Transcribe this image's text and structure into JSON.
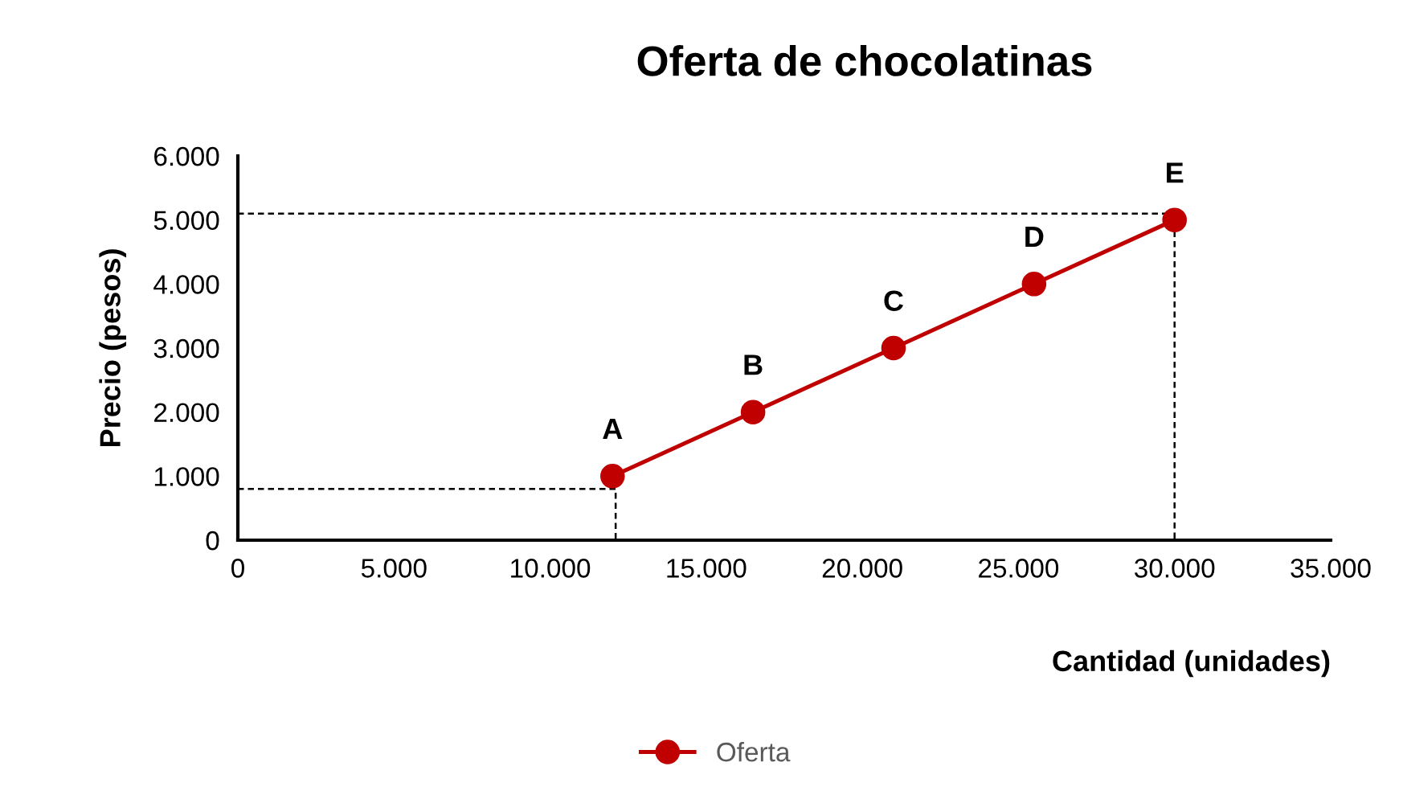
{
  "chart_data": {
    "type": "line",
    "title": "Oferta de chocolatinas",
    "xlabel": "Cantidad (unidades)",
    "ylabel": "Precio (pesos)",
    "x": [
      12000,
      16500,
      21000,
      25500,
      30000
    ],
    "series": [
      {
        "name": "Oferta",
        "color": "#c00000",
        "values": [
          1000,
          2000,
          3000,
          4000,
          5000
        ],
        "marker": "circle",
        "line_style": "solid"
      },
      {
        "color": "#000000",
        "x": [
          0,
          12100,
          12100
        ],
        "values": [
          800,
          800,
          0
        ],
        "marker": "none",
        "line_style": "dashed"
      },
      {
        "color": "#000000",
        "x": [
          0,
          30000,
          30000
        ],
        "values": [
          5100,
          5100,
          0
        ],
        "marker": "none",
        "line_style": "dashed"
      }
    ],
    "annotations": [
      {
        "text": "A",
        "x": 12000,
        "y": 1000
      },
      {
        "text": "B",
        "x": 16500,
        "y": 2000
      },
      {
        "text": "C",
        "x": 21000,
        "y": 3000
      },
      {
        "text": "D",
        "x": 25500,
        "y": 4000
      },
      {
        "text": "E",
        "x": 30000,
        "y": 5000
      }
    ],
    "xlim": [
      0,
      35000
    ],
    "xticks": [
      {
        "value": 0,
        "label": "0"
      },
      {
        "value": 5000,
        "label": "5.000"
      },
      {
        "value": 10000,
        "label": "10.000"
      },
      {
        "value": 15000,
        "label": "15.000"
      },
      {
        "value": 20000,
        "label": "20.000"
      },
      {
        "value": 25000,
        "label": "25.000"
      },
      {
        "value": 30000,
        "label": "30.000"
      },
      {
        "value": 35000,
        "label": "35.000"
      }
    ],
    "ylim": [
      0,
      6000
    ],
    "yticks": [
      {
        "value": 0,
        "label": "0"
      },
      {
        "value": 1000,
        "label": "1.000"
      },
      {
        "value": 2000,
        "label": "2.000"
      },
      {
        "value": 3000,
        "label": "3.000"
      },
      {
        "value": 4000,
        "label": "4.000"
      },
      {
        "value": 5000,
        "label": "5.000"
      },
      {
        "value": 6000,
        "label": "6.000"
      }
    ],
    "grid": false,
    "legend": "bottom"
  }
}
